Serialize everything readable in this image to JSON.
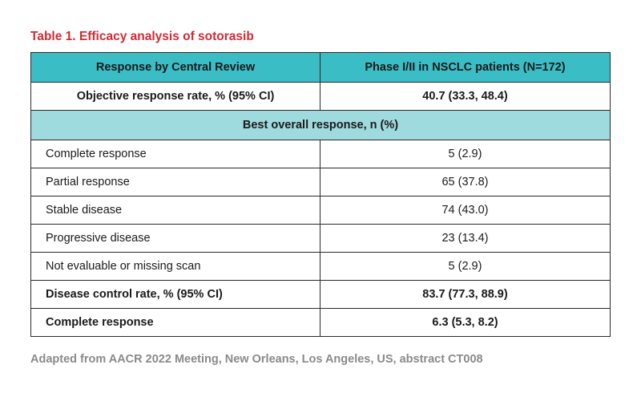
{
  "title": "Table 1. Efficacy analysis of sotorasib",
  "colors": {
    "title": "#d12a34",
    "header_bg": "#3bbdc5",
    "section_bg": "#9fdade",
    "footnote": "#8a8a8a"
  },
  "table": {
    "headers": [
      "Response by Central Review",
      "Phase I/II in NSCLC patients (N=172)"
    ],
    "orr": {
      "label": "Objective response rate, % (95% CI)",
      "value": "40.7 (33.3, 48.4)"
    },
    "section_label": "Best overall response, n (%)",
    "rows": [
      {
        "label": "Complete response",
        "value": "5 (2.9)"
      },
      {
        "label": "Partial response",
        "value": "65 (37.8)"
      },
      {
        "label": "Stable disease",
        "value": "74 (43.0)"
      },
      {
        "label": "Progressive disease",
        "value": "23 (13.4)"
      },
      {
        "label": "Not evaluable or missing scan",
        "value": "5 (2.9)"
      },
      {
        "label": "Disease control rate, % (95% CI)",
        "value": "83.7 (77.3, 88.9)"
      },
      {
        "label": "Complete response",
        "value": "6.3 (5.3, 8.2)"
      }
    ]
  },
  "footnote": "Adapted from AACR 2022 Meeting, New Orleans, Los Angeles, US, abstract CT008"
}
